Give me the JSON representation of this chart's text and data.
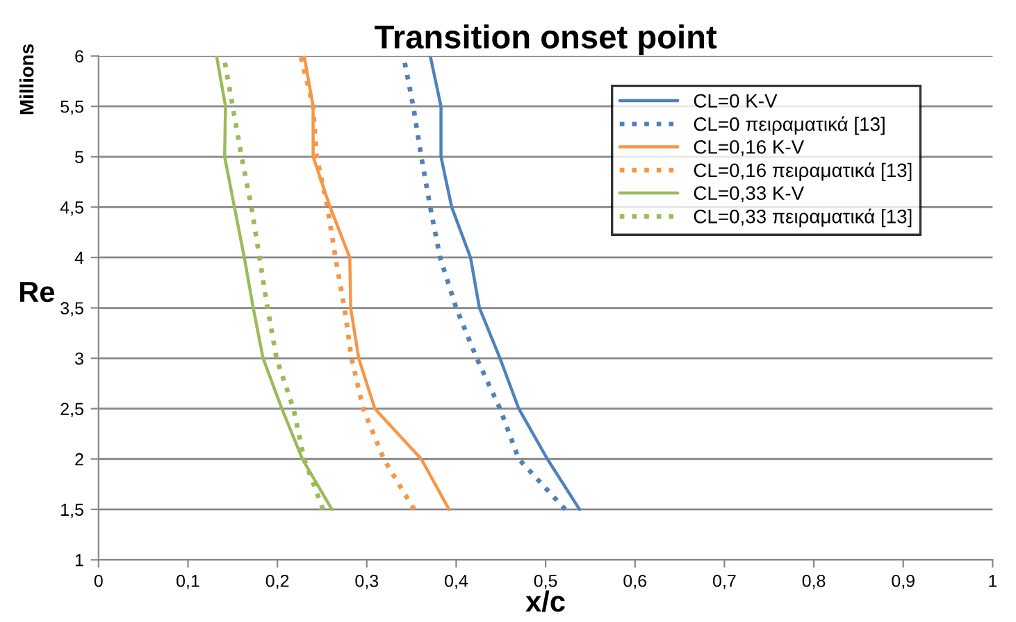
{
  "chart_data": {
    "type": "line",
    "title": "Transition onset point",
    "xlabel": "x/c",
    "ylabel": "Re",
    "annotations": [
      "Millions"
    ],
    "xlim": [
      0,
      1
    ],
    "ylim": [
      1,
      6
    ],
    "xticks": [
      0,
      {
        "value": 0.1,
        "label": "0,1"
      },
      {
        "value": 0.2,
        "label": "0,2"
      },
      {
        "value": 0.3,
        "label": "0,3"
      },
      {
        "value": 0.4,
        "label": "0,4"
      },
      {
        "value": 0.5,
        "label": "0,5"
      },
      {
        "value": 0.6,
        "label": "0,6"
      },
      {
        "value": 0.7,
        "label": "0,7"
      },
      {
        "value": 0.8,
        "label": "0,8"
      },
      {
        "value": 0.9,
        "label": "0,9"
      },
      1
    ],
    "yticks": [
      1,
      {
        "value": 1.5,
        "label": "1,5"
      },
      2,
      {
        "value": 2.5,
        "label": "2,5"
      },
      3,
      {
        "value": 3.5,
        "label": "3,5"
      },
      4,
      {
        "value": 4.5,
        "label": "4,5"
      },
      5,
      {
        "value": 5.5,
        "label": "5,5"
      },
      6
    ],
    "grid": "y",
    "legend": "top right",
    "marker": "none",
    "series": [
      {
        "name": "CL=0 K-V",
        "color": "#4f81bd",
        "line_style": "solid",
        "x": [
          0.538,
          0.502,
          0.47,
          0.449,
          0.426,
          0.416,
          0.395,
          0.383,
          0.383,
          0.371
        ],
        "values": [
          1.5,
          2,
          2.5,
          3,
          3.5,
          4,
          4.5,
          5,
          5.5,
          6
        ]
      },
      {
        "name": "CL=0 πειραματικά [13]",
        "color": "#4f81bd",
        "line_style": "dotted",
        "x": [
          0.522,
          0.47,
          0.449,
          0.423,
          0.4,
          0.382,
          0.371,
          0.361,
          0.352,
          0.341
        ],
        "values": [
          1.5,
          2,
          2.5,
          3,
          3.5,
          4,
          4.5,
          5,
          5.5,
          6
        ]
      },
      {
        "name": "CL=0,16 K-V",
        "color": "#f79646",
        "line_style": "solid",
        "x": [
          0.392,
          0.361,
          0.309,
          0.291,
          0.282,
          0.281,
          0.259,
          0.24,
          0.24,
          0.23
        ],
        "values": [
          1.5,
          2,
          2.5,
          3,
          3.5,
          4,
          4.5,
          5,
          5.5,
          6
        ]
      },
      {
        "name": "CL=0,16 πειραματικά [13]",
        "color": "#f79646",
        "line_style": "dotted",
        "x": [
          0.353,
          0.319,
          0.296,
          0.283,
          0.275,
          0.265,
          0.256,
          0.244,
          0.24,
          0.226
        ],
        "values": [
          1.5,
          2,
          2.5,
          3,
          3.5,
          4,
          4.5,
          5,
          5.5,
          6
        ]
      },
      {
        "name": "CL=0,33 K-V",
        "color": "#9bbb59",
        "line_style": "solid",
        "x": [
          0.261,
          0.228,
          0.205,
          0.184,
          0.173,
          0.163,
          0.152,
          0.141,
          0.142,
          0.132
        ],
        "values": [
          1.5,
          2,
          2.5,
          3,
          3.5,
          4,
          4.5,
          5,
          5.5,
          6
        ]
      },
      {
        "name": "CL=0,33 πειραματικά [13]",
        "color": "#9bbb59",
        "line_style": "dotted",
        "x": [
          0.251,
          0.23,
          0.218,
          0.199,
          0.189,
          0.18,
          0.171,
          0.16,
          0.15,
          0.14
        ],
        "values": [
          1.5,
          2,
          2.5,
          3,
          3.5,
          4,
          4.5,
          5,
          5.5,
          6
        ]
      }
    ]
  }
}
